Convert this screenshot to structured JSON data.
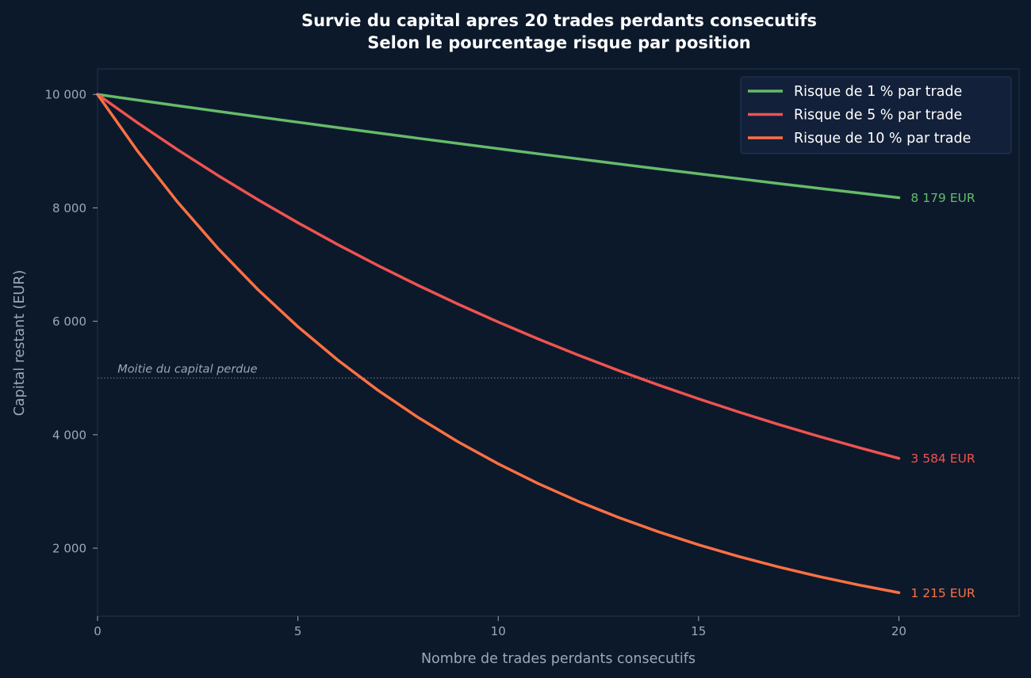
{
  "chart_data": {
    "type": "line",
    "title": "Survie du capital apres 20 trades perdants consecutifs",
    "subtitle": "Selon le pourcentage risque par position",
    "xlabel": "Nombre de trades perdants consecutifs",
    "ylabel": "Capital restant (EUR)",
    "xlim": [
      0,
      23
    ],
    "ylim": [
      800,
      10450
    ],
    "x_ticks": [
      0,
      5,
      10,
      15,
      20
    ],
    "x_tick_labels": [
      "0",
      "5",
      "10",
      "15",
      "20"
    ],
    "y_ticks": [
      2000,
      4000,
      6000,
      8000,
      10000
    ],
    "y_tick_labels": [
      "2 000",
      "4 000",
      "6 000",
      "8 000",
      "10 000"
    ],
    "grid": false,
    "legend_position": "top-right",
    "x": [
      0,
      1,
      2,
      3,
      4,
      5,
      6,
      7,
      8,
      9,
      10,
      11,
      12,
      13,
      14,
      15,
      16,
      17,
      18,
      19,
      20
    ],
    "series": [
      {
        "name": "Risque de 1 % par trade",
        "color": "#66bb6a",
        "values": [
          10000,
          9900,
          9801,
          9703,
          9606,
          9510,
          9415,
          9321,
          9227,
          9135,
          9044,
          8953,
          8864,
          8775,
          8687,
          8601,
          8515,
          8429,
          8345,
          8262,
          8179
        ],
        "end_label": "8 179 EUR"
      },
      {
        "name": "Risque de 5 % par trade",
        "color": "#ef5350",
        "values": [
          10000,
          9500,
          9025,
          8574,
          8145,
          7738,
          7351,
          6983,
          6634,
          6302,
          5987,
          5688,
          5404,
          5133,
          4877,
          4633,
          4401,
          4181,
          3972,
          3774,
          3584
        ],
        "end_label": "3 584 EUR"
      },
      {
        "name": "Risque de 10 % par trade",
        "color": "#ff7043",
        "values": [
          10000,
          9000,
          8100,
          7290,
          6561,
          5905,
          5314,
          4783,
          4305,
          3874,
          3487,
          3138,
          2824,
          2542,
          2288,
          2059,
          1853,
          1668,
          1501,
          1351,
          1215
        ],
        "end_label": "1 215 EUR"
      }
    ],
    "annotations": [
      {
        "type": "hline",
        "y": 5000,
        "text": "Moitie du capital perdue",
        "x_text": 0.5
      }
    ]
  }
}
